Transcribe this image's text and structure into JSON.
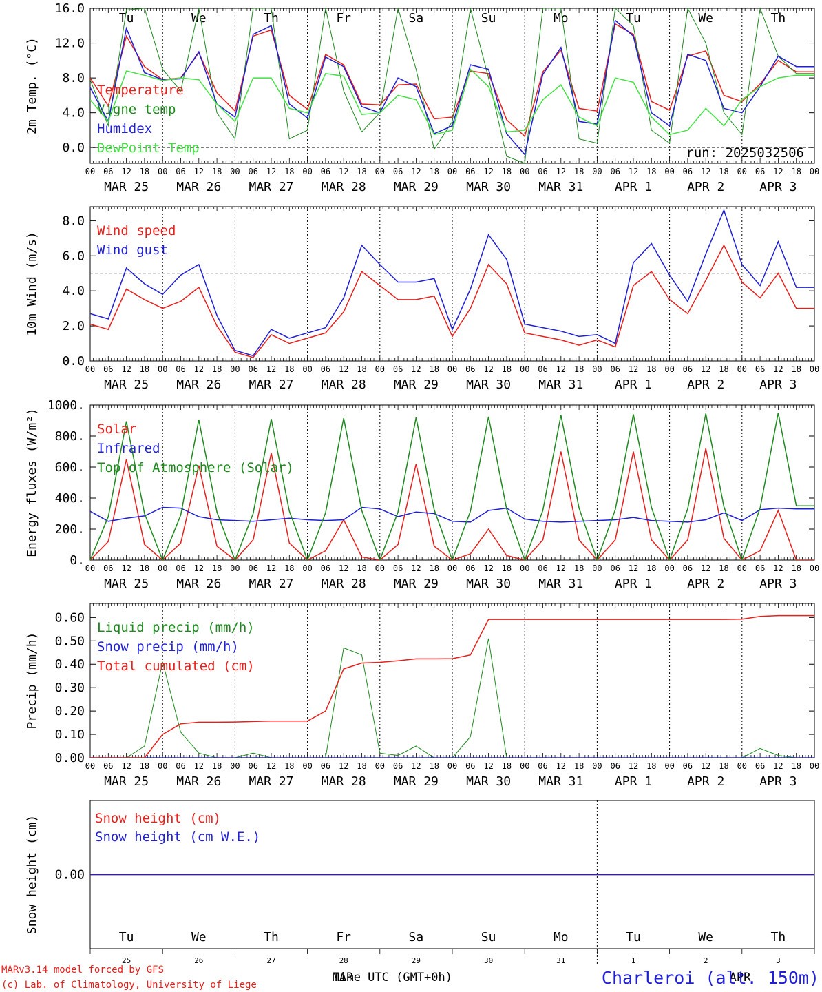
{
  "meta": {
    "run_label": "run: 2025032506",
    "footer_line1": "MARv3.14 model forced by GFS",
    "footer_line2": "(c) Lab. of Climatology, University of Liege",
    "station": "Charleroi (alt. 150m)",
    "time_axis_label": "Time UTC (GMT+0h)",
    "month_mar": "MAR",
    "month_apr": "APR",
    "hour_ticks": [
      "00",
      "06",
      "12",
      "18"
    ],
    "date_labels": [
      "MAR 25",
      "MAR 26",
      "MAR 27",
      "MAR 28",
      "MAR 29",
      "MAR 30",
      "MAR 31",
      "APR  1",
      "APR  2",
      "APR  3"
    ],
    "weekdays": [
      "Tu",
      "We",
      "Th",
      "Fr",
      "Sa",
      "Su",
      "Mo",
      "Tu",
      "We",
      "Th"
    ],
    "weekend_color": "#e8201c",
    "bottom_day_numbers": [
      "25",
      "26",
      "27",
      "28",
      "29",
      "30",
      "31",
      "1",
      "2",
      "3"
    ]
  },
  "colors": {
    "red": "#e8201c",
    "dark_green": "#1d8a1d",
    "blue": "#1f1fd6",
    "light_green": "#44e044"
  },
  "chart_data": [
    {
      "type": "line",
      "title": "",
      "ylabel": "2m Temp. (°C)",
      "ylim": [
        -1.8,
        16.0
      ],
      "ytick_labels": [
        "0.0",
        "4.0",
        "8.0",
        "12.0",
        "16.0"
      ],
      "yticks": [
        0,
        4,
        8,
        12,
        16
      ],
      "reference_line": 0,
      "x_hours": [
        0,
        6,
        12,
        18,
        24,
        30,
        36,
        42,
        48,
        54,
        60,
        66,
        72,
        78,
        84,
        90,
        96,
        102,
        108,
        114,
        120,
        126,
        132,
        138,
        144,
        150,
        156,
        162,
        168,
        174,
        180,
        186,
        192,
        198,
        204,
        210,
        216,
        222,
        228,
        234
      ],
      "series": [
        {
          "name": "Temperature",
          "color": "red",
          "values": [
            8.0,
            4.8,
            12.8,
            9.3,
            7.8,
            8.0,
            10.9,
            6.3,
            4.2,
            12.8,
            13.5,
            6.0,
            4.4,
            10.7,
            9.5,
            5.0,
            4.9,
            7.2,
            7.3,
            3.3,
            3.5,
            8.8,
            8.5,
            3.2,
            1.3,
            8.7,
            11.2,
            4.5,
            4.2,
            14.2,
            13.0,
            5.3,
            4.3,
            10.5,
            11.1,
            6.0,
            5.3,
            7.3,
            10.0,
            8.7
          ]
        },
        {
          "name": "Vigne temp",
          "color": "dark_green",
          "values": [
            7.8,
            2.5,
            15.8,
            16.0,
            9.0,
            6.5,
            16.0,
            4.0,
            1.0,
            16.0,
            16.0,
            1.0,
            2.0,
            16.0,
            6.5,
            1.8,
            4.0,
            16.0,
            9.0,
            -0.2,
            3.0,
            16.0,
            8.0,
            -1.0,
            -1.8,
            16.0,
            16.0,
            1.0,
            0.5,
            16.0,
            14.0,
            2.0,
            0.5,
            16.0,
            12.0,
            4.0,
            1.5,
            16.0,
            10.5,
            8.5
          ]
        },
        {
          "name": "Humidex",
          "color": "blue",
          "values": [
            6.9,
            3.0,
            13.7,
            8.6,
            7.8,
            7.9,
            11.0,
            5.0,
            3.5,
            13.0,
            14.0,
            5.0,
            3.4,
            10.4,
            9.3,
            4.7,
            4.0,
            8.0,
            7.0,
            1.6,
            2.5,
            9.5,
            9.0,
            1.6,
            -0.8,
            8.4,
            11.5,
            3.0,
            2.7,
            14.6,
            12.8,
            4.0,
            2.5,
            10.7,
            10.0,
            4.5,
            4.0,
            7.0,
            10.5,
            9.3
          ]
        },
        {
          "name": "DewPoint Temp",
          "color": "light_green",
          "values": [
            5.5,
            3.0,
            8.8,
            8.3,
            7.7,
            8.0,
            7.8,
            5.0,
            3.0,
            8.0,
            8.0,
            4.5,
            4.0,
            8.5,
            8.2,
            3.8,
            4.0,
            6.0,
            5.5,
            1.5,
            2.0,
            9.0,
            7.0,
            1.8,
            2.0,
            5.5,
            7.2,
            3.5,
            2.5,
            8.0,
            7.5,
            3.5,
            1.5,
            2.0,
            4.5,
            2.5,
            5.5,
            7.0,
            8.0,
            8.3
          ]
        }
      ]
    },
    {
      "type": "line",
      "title": "",
      "ylabel": "10m Wind (m/s)",
      "ylim": [
        0,
        8.8
      ],
      "ytick_labels": [
        "0.0",
        "2.0",
        "4.0",
        "6.0",
        "8.0"
      ],
      "yticks": [
        0,
        2,
        4,
        6,
        8
      ],
      "reference_line": 5,
      "x_hours": [
        0,
        6,
        12,
        18,
        24,
        30,
        36,
        42,
        48,
        54,
        60,
        66,
        72,
        78,
        84,
        90,
        96,
        102,
        108,
        114,
        120,
        126,
        132,
        138,
        144,
        150,
        156,
        162,
        168,
        174,
        180,
        186,
        192,
        198,
        204,
        210,
        216,
        222,
        228,
        234
      ],
      "series": [
        {
          "name": "Wind speed",
          "color": "red",
          "values": [
            2.1,
            1.8,
            4.1,
            3.5,
            3.0,
            3.4,
            4.2,
            2.0,
            0.5,
            0.2,
            1.5,
            1.0,
            1.3,
            1.6,
            2.8,
            5.1,
            4.3,
            3.5,
            3.5,
            3.7,
            1.4,
            3.0,
            5.5,
            4.4,
            1.6,
            1.4,
            1.2,
            0.9,
            1.2,
            0.8,
            4.3,
            5.1,
            3.5,
            2.7,
            4.6,
            6.6,
            4.5,
            3.6,
            5.0,
            3.0
          ]
        },
        {
          "name": "Wind gust",
          "color": "blue",
          "values": [
            2.7,
            2.4,
            5.3,
            4.4,
            3.8,
            4.9,
            5.5,
            2.6,
            0.6,
            0.3,
            1.8,
            1.3,
            1.6,
            1.9,
            3.6,
            6.6,
            5.5,
            4.5,
            4.5,
            4.7,
            1.8,
            4.1,
            7.2,
            5.8,
            2.1,
            1.9,
            1.7,
            1.4,
            1.5,
            1.0,
            5.6,
            6.7,
            4.9,
            3.4,
            6.1,
            8.6,
            5.5,
            4.3,
            6.8,
            4.2
          ]
        }
      ]
    },
    {
      "type": "line",
      "title": "",
      "ylabel": "Energy fluxes (W/m²)",
      "ylim": [
        0,
        1000
      ],
      "ytick_labels": [
        "0.",
        "200.",
        "400.",
        "600.",
        "800.",
        "1000."
      ],
      "yticks": [
        0,
        200,
        400,
        600,
        800,
        1000
      ],
      "reference_line": null,
      "x_hours": [
        0,
        6,
        12,
        18,
        24,
        30,
        36,
        42,
        48,
        54,
        60,
        66,
        72,
        78,
        84,
        90,
        96,
        102,
        108,
        114,
        120,
        126,
        132,
        138,
        144,
        150,
        156,
        162,
        168,
        174,
        180,
        186,
        192,
        198,
        204,
        210,
        216,
        222,
        228,
        234
      ],
      "series": [
        {
          "name": "Solar",
          "color": "red",
          "values": [
            0,
            120,
            650,
            100,
            0,
            110,
            610,
            90,
            0,
            130,
            690,
            110,
            0,
            60,
            260,
            20,
            0,
            100,
            620,
            90,
            0,
            40,
            200,
            30,
            0,
            130,
            700,
            130,
            0,
            130,
            700,
            130,
            0,
            130,
            720,
            140,
            0,
            60,
            320,
            0
          ]
        },
        {
          "name": "Infrared",
          "color": "blue",
          "values": [
            315,
            250,
            270,
            285,
            340,
            335,
            280,
            260,
            255,
            250,
            260,
            270,
            260,
            255,
            260,
            340,
            330,
            280,
            310,
            300,
            250,
            245,
            320,
            335,
            265,
            250,
            245,
            250,
            255,
            260,
            275,
            255,
            250,
            245,
            260,
            305,
            255,
            325,
            335,
            330
          ]
        },
        {
          "name": "Top of Atmosphere (Solar)",
          "color": "dark_green",
          "values": [
            0,
            280,
            895,
            300,
            0,
            290,
            905,
            310,
            0,
            300,
            910,
            315,
            0,
            305,
            915,
            320,
            0,
            310,
            920,
            325,
            0,
            315,
            925,
            330,
            0,
            320,
            935,
            335,
            0,
            325,
            940,
            340,
            0,
            330,
            945,
            345,
            0,
            335,
            950,
            350
          ]
        }
      ]
    },
    {
      "type": "line",
      "title": "",
      "ylabel": "Precip (mm/h)",
      "ylim": [
        0,
        0.66
      ],
      "ytick_labels": [
        "0.00",
        "0.10",
        "0.20",
        "0.30",
        "0.40",
        "0.50",
        "0.60"
      ],
      "yticks": [
        0,
        0.1,
        0.2,
        0.3,
        0.4,
        0.5,
        0.6
      ],
      "reference_line": null,
      "x_hours": [
        0,
        6,
        12,
        18,
        24,
        30,
        36,
        42,
        48,
        54,
        60,
        66,
        72,
        78,
        84,
        90,
        96,
        102,
        108,
        114,
        120,
        126,
        132,
        138,
        144,
        150,
        156,
        162,
        168,
        174,
        180,
        186,
        192,
        198,
        204,
        210,
        216,
        222,
        228,
        234
      ],
      "series": [
        {
          "name": "Liquid precip (mm/h)",
          "color": "dark_green",
          "values": [
            0,
            0,
            0,
            0.05,
            0.41,
            0.11,
            0.02,
            0,
            0,
            0.02,
            0,
            0,
            0,
            0,
            0.47,
            0.44,
            0.02,
            0.01,
            0.05,
            0,
            0,
            0.09,
            0.51,
            0,
            0,
            0,
            0,
            0,
            0,
            0,
            0,
            0,
            0,
            0,
            0,
            0,
            0,
            0.04,
            0.01,
            0
          ]
        },
        {
          "name": "Snow precip (mm/h)",
          "color": "blue",
          "values": [
            0,
            0,
            0,
            0,
            0,
            0,
            0,
            0,
            0,
            0,
            0,
            0,
            0,
            0,
            0,
            0,
            0,
            0,
            0,
            0,
            0,
            0,
            0,
            0,
            0,
            0,
            0,
            0,
            0,
            0,
            0,
            0,
            0,
            0,
            0,
            0,
            0,
            0,
            0,
            0
          ]
        },
        {
          "name": "Total cumulated (cm)",
          "color": "red",
          "values": [
            0,
            0,
            0,
            0,
            0.1,
            0.145,
            0.152,
            0.152,
            0.153,
            0.155,
            0.157,
            0.157,
            0.157,
            0.2,
            0.38,
            0.405,
            0.408,
            0.415,
            0.423,
            0.423,
            0.424,
            0.44,
            0.592,
            0.592,
            0.592,
            0.592,
            0.592,
            0.592,
            0.592,
            0.592,
            0.592,
            0.592,
            0.592,
            0.592,
            0.592,
            0.592,
            0.593,
            0.605,
            0.608,
            0.608
          ]
        }
      ]
    },
    {
      "type": "line",
      "title": "",
      "ylabel": "Snow height (cm)",
      "ylim": [
        -1,
        1
      ],
      "ytick_labels": [
        "0.00"
      ],
      "yticks": [
        0
      ],
      "reference_line": null,
      "x_hours": [
        0,
        240
      ],
      "series": [
        {
          "name": "Snow height (cm)",
          "color": "red",
          "values": [
            0,
            0
          ]
        },
        {
          "name": "Snow height (cm W.E.)",
          "color": "blue",
          "values": [
            0,
            0
          ]
        }
      ]
    }
  ]
}
